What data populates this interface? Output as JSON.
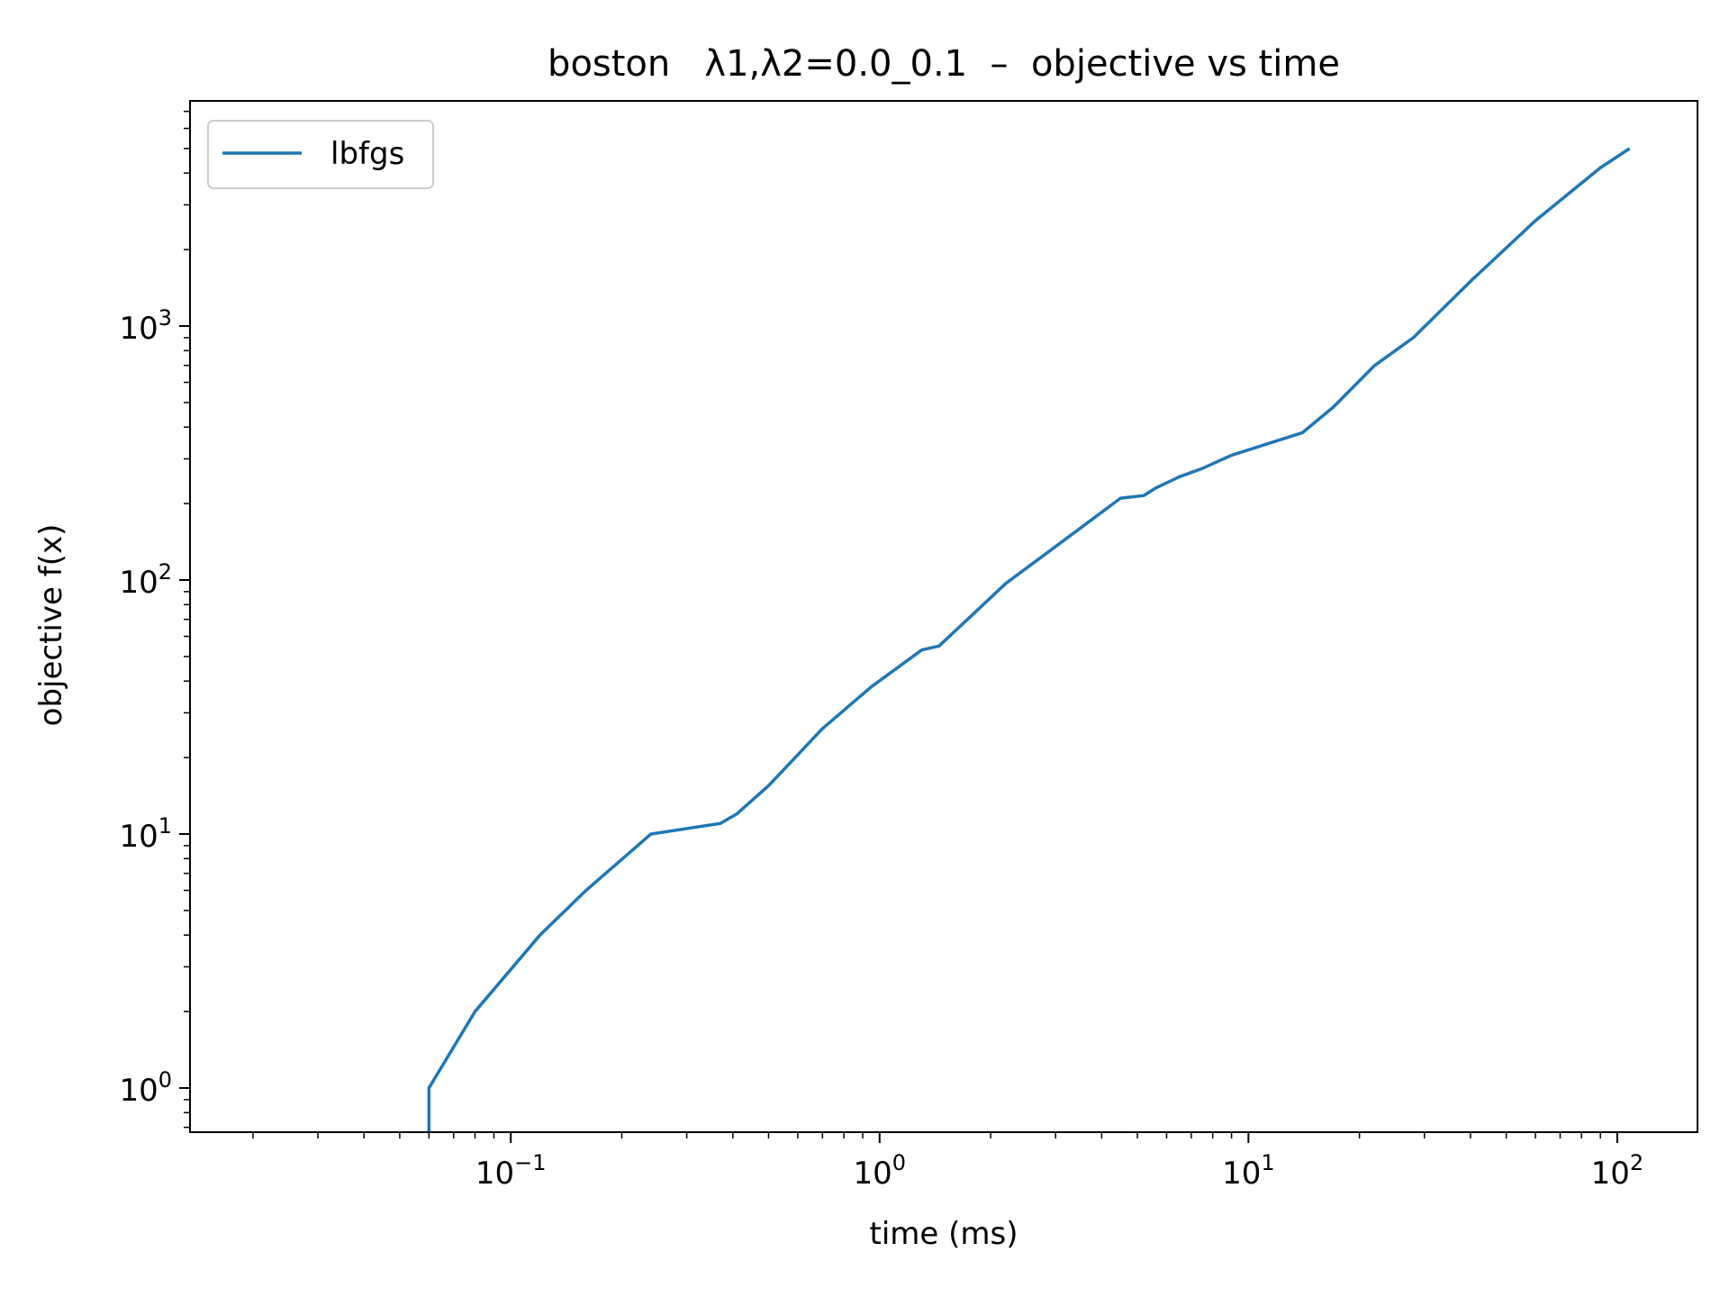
{
  "chart_data": {
    "type": "line",
    "title": "boston   λ1,λ2=0.0_0.1  –  objective vs time",
    "xlabel": "time (ms)",
    "ylabel": "objective f(x)",
    "xscale": "log",
    "yscale": "log",
    "xlim": [
      0.0135,
      165
    ],
    "ylim": [
      0.67,
      7700
    ],
    "x_major_ticks": [
      {
        "value": 0.1,
        "base": "10",
        "exp": "−1"
      },
      {
        "value": 1,
        "base": "10",
        "exp": "0"
      },
      {
        "value": 10,
        "base": "10",
        "exp": "1"
      },
      {
        "value": 100,
        "base": "10",
        "exp": "2"
      }
    ],
    "y_major_ticks": [
      {
        "value": 1,
        "base": "10",
        "exp": "0"
      },
      {
        "value": 10,
        "base": "10",
        "exp": "1"
      },
      {
        "value": 100,
        "base": "10",
        "exp": "2"
      },
      {
        "value": 1000,
        "base": "10",
        "exp": "3"
      }
    ],
    "grid": false,
    "legend_position": "top-left",
    "series": [
      {
        "name": "lbfgs",
        "color": "#1f77b4",
        "x": [
          0.06,
          0.06,
          0.08,
          0.12,
          0.16,
          0.24,
          0.37,
          0.41,
          0.5,
          0.7,
          0.95,
          1.3,
          1.45,
          2.2,
          3.5,
          4.5,
          5.2,
          5.6,
          6.5,
          7.5,
          9,
          11,
          14,
          17,
          22,
          28,
          40,
          60,
          90,
          108
        ],
        "y": [
          0.67,
          1.0,
          2.0,
          4.0,
          6.0,
          10.0,
          11.0,
          12.0,
          15.5,
          26.0,
          38.0,
          53.0,
          55.0,
          97.0,
          160.0,
          210.0,
          215.0,
          230.0,
          255.0,
          275.0,
          310.0,
          340.0,
          380.0,
          480.0,
          700.0,
          900.0,
          1500.0,
          2600.0,
          4200.0,
          5000.0
        ]
      }
    ]
  }
}
